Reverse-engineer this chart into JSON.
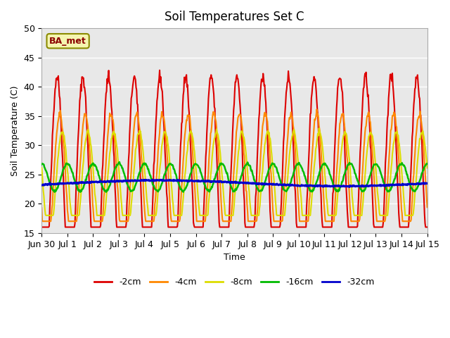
{
  "title": "Soil Temperatures Set C",
  "xlabel": "Time",
  "ylabel": "Soil Temperature (C)",
  "ylim": [
    15,
    50
  ],
  "annotation": "BA_met",
  "series_colors": {
    "-2cm": "#dd0000",
    "-4cm": "#ff8800",
    "-8cm": "#dddd00",
    "-16cm": "#00bb00",
    "-32cm": "#0000cc"
  },
  "series_linewidths": {
    "-2cm": 1.5,
    "-4cm": 1.5,
    "-8cm": 1.5,
    "-16cm": 1.8,
    "-32cm": 2.2
  },
  "background_color": "#ffffff",
  "plot_bg_color": "#e8e8e8",
  "grid_color": "#ffffff",
  "yticks": [
    15,
    20,
    25,
    30,
    35,
    40,
    45,
    50
  ],
  "tick_labels": [
    "Jun 30",
    "Jul 1",
    "Jul 2",
    "Jul 3",
    "Jul 4",
    "Jul 5",
    "Jul 6",
    "Jul 7",
    "Jul 8",
    "Jul 9",
    "Jul 10",
    "Jul 11",
    "Jul 12",
    "Jul 13",
    "Jul 14",
    "Jul 15"
  ]
}
